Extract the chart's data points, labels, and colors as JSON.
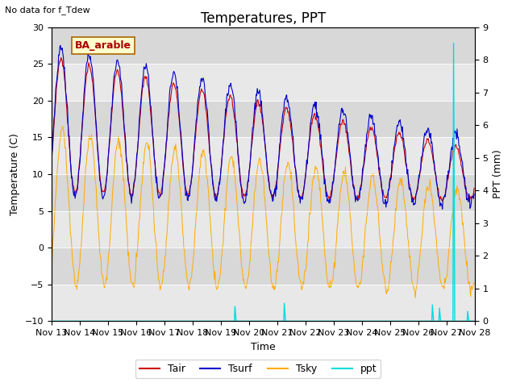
{
  "title": "Temperatures, PPT",
  "subtitle": "No data for f_Tdew",
  "station_label": "BA_arable",
  "xlabel": "Time",
  "ylabel_left": "Temperature (C)",
  "ylabel_right": "PPT (mm)",
  "ylim_left": [
    -10,
    30
  ],
  "ylim_right": [
    0,
    9
  ],
  "yticks_left": [
    -10,
    -5,
    0,
    5,
    10,
    15,
    20,
    25,
    30
  ],
  "yticks_right": [
    0.0,
    1.0,
    2.0,
    3.0,
    4.0,
    5.0,
    6.0,
    7.0,
    8.0,
    9.0
  ],
  "xtick_labels": [
    "Nov 13",
    "Nov 14",
    "Nov 15",
    "Nov 16",
    "Nov 17",
    "Nov 18",
    "Nov 19",
    "Nov 20",
    "Nov 21",
    "Nov 22",
    "Nov 23",
    "Nov 24",
    "Nov 25",
    "Nov 26",
    "Nov 27",
    "Nov 28"
  ],
  "color_tair": "#cc0000",
  "color_tsurf": "#0000cc",
  "color_tsky": "#ffaa00",
  "color_ppt": "#00dddd",
  "bg_dark": "#d8d8d8",
  "bg_light": "#e8e8e8",
  "title_fontsize": 12,
  "label_fontsize": 9,
  "tick_fontsize": 8
}
